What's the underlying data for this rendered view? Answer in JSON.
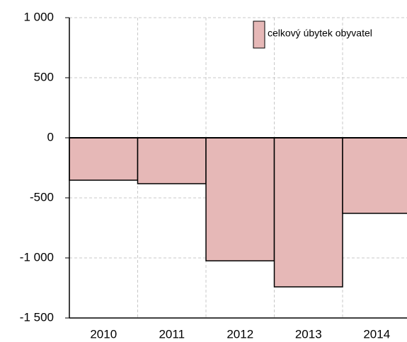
{
  "chart_data": {
    "type": "bar",
    "categories": [
      "2010",
      "2011",
      "2012",
      "2013",
      "2014"
    ],
    "series": [
      {
        "name": "celkový úbytek obyvatel",
        "color": "#e6b8b7",
        "values": [
          -353,
          -382,
          -1024,
          -1241,
          -629
        ]
      }
    ],
    "ylim": [
      -1500,
      1000
    ],
    "yticks": [
      {
        "value": -1500,
        "label": "-1 500"
      },
      {
        "value": -1000,
        "label": "-1 000"
      },
      -500,
      0,
      500,
      {
        "value": 1000,
        "label": "1 000"
      }
    ],
    "grid": true,
    "legend": "top-right"
  }
}
